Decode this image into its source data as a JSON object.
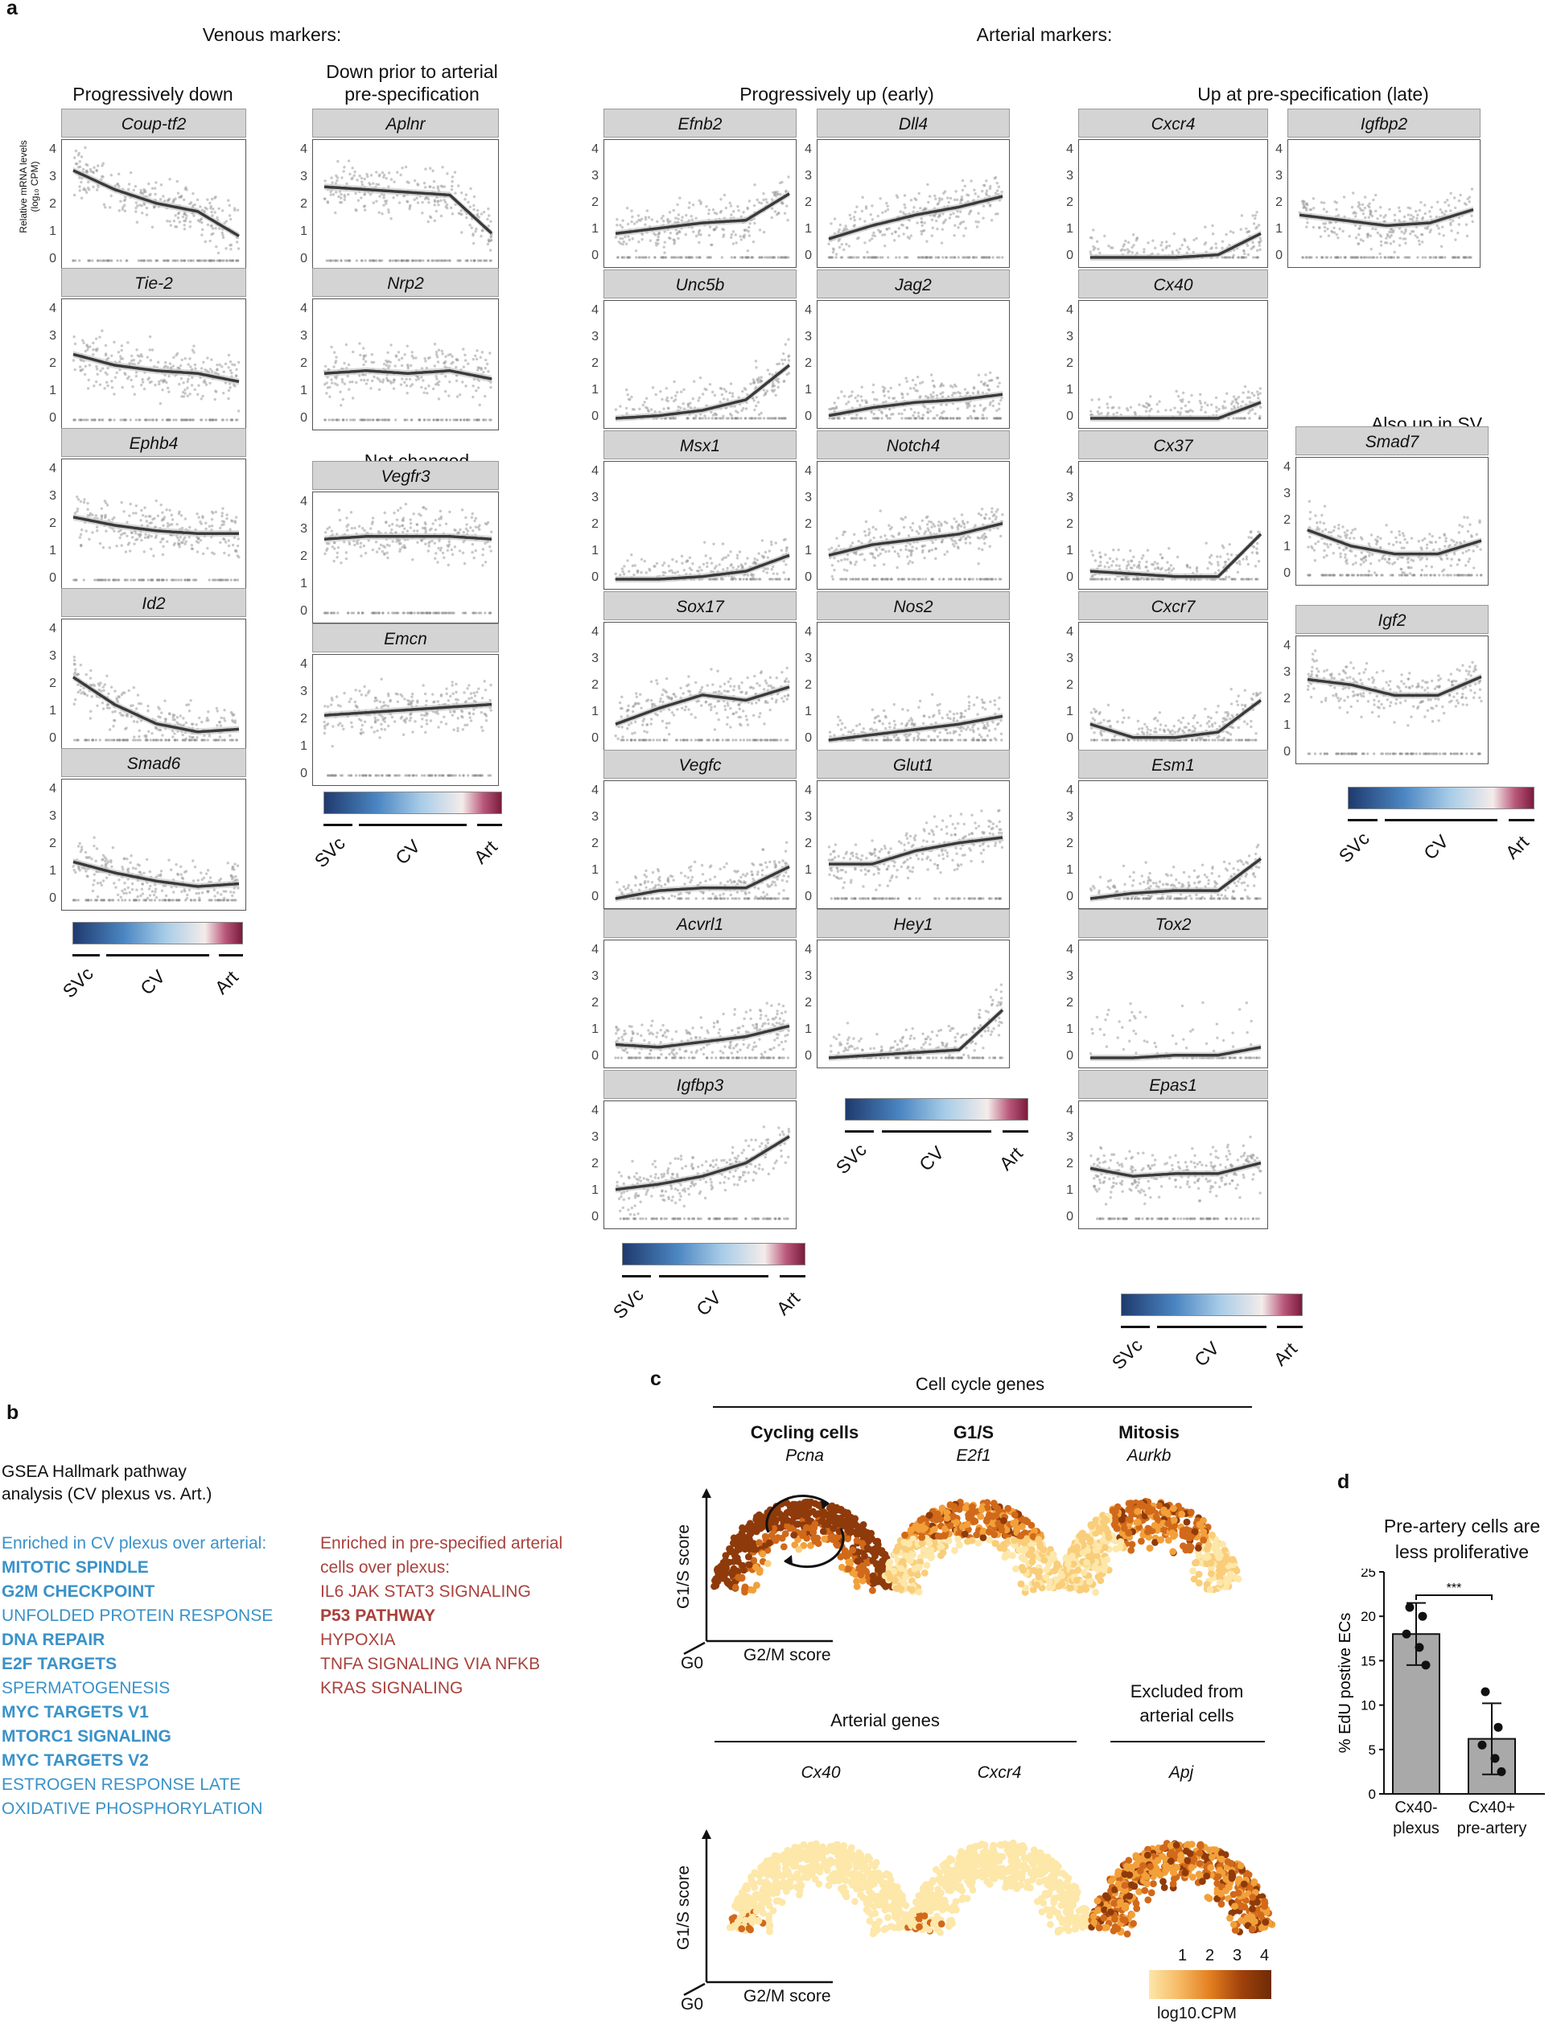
{
  "panel_letters": {
    "a": "a",
    "b": "b",
    "c": "c",
    "d": "d"
  },
  "panel_a": {
    "venous_title": "Venous markers:",
    "arterial_title": "Arterial markers:",
    "group_titles": {
      "prog_down": "Progressively down",
      "down_prior_l1": "Down prior to arterial",
      "down_prior_l2": "pre-specification",
      "not_changed": "Not changed",
      "prog_up": "Progressively up (early)",
      "up_late": "Up at pre-specification (late)",
      "also_sv": "Also up in SV"
    },
    "y_axis_label_l1": "Relative mRNA levels",
    "y_axis_label_l2": "(log₁₀ CPM)",
    "colorbar_labels": {
      "svc": "SVc",
      "cv": "CV",
      "art": "Art"
    },
    "colors": {
      "curve": "#3a3a3a",
      "dots": "#9a9a9a",
      "ribbon": "#c8c8c8",
      "strip": "#d4d4d4"
    },
    "genes": [
      {
        "name": "Coup-tf2",
        "yticks": [
          "4",
          "3",
          "2",
          "1",
          "0"
        ],
        "trend": [
          3.3,
          2.6,
          2.1,
          1.8,
          0.9
        ]
      },
      {
        "name": "Tie-2",
        "yticks": [
          "4",
          "3",
          "2",
          "1",
          "0"
        ],
        "trend": [
          2.4,
          2.0,
          1.8,
          1.7,
          1.4
        ]
      },
      {
        "name": "Ephb4",
        "yticks": [
          "4",
          "3",
          "2",
          "1",
          "0"
        ],
        "trend": [
          2.3,
          2.0,
          1.8,
          1.7,
          1.7
        ]
      },
      {
        "name": "Id2",
        "yticks": [
          "4",
          "3",
          "2",
          "1",
          "0"
        ],
        "trend": [
          2.3,
          1.3,
          0.6,
          0.3,
          0.4
        ]
      },
      {
        "name": "Smad6",
        "yticks": [
          "4",
          "3",
          "2",
          "1",
          "0"
        ],
        "trend": [
          1.4,
          1.0,
          0.7,
          0.5,
          0.6
        ]
      },
      {
        "name": "Aplnr",
        "yticks": [
          "4",
          "3",
          "2",
          "1",
          "0"
        ],
        "trend": [
          2.7,
          2.6,
          2.5,
          2.4,
          1.0
        ]
      },
      {
        "name": "Nrp2",
        "yticks": [
          "4",
          "3",
          "2",
          "1",
          "0"
        ],
        "trend": [
          1.7,
          1.8,
          1.7,
          1.8,
          1.5
        ]
      },
      {
        "name": "Vegfr3",
        "yticks": [
          "4",
          "3",
          "2",
          "1",
          "0"
        ],
        "trend": [
          2.7,
          2.8,
          2.8,
          2.8,
          2.7
        ]
      },
      {
        "name": "Emcn",
        "yticks": [
          "4",
          "3",
          "2",
          "1",
          "0"
        ],
        "trend": [
          2.2,
          2.3,
          2.4,
          2.5,
          2.6
        ]
      },
      {
        "name": "Efnb2",
        "yticks": [
          "4",
          "3",
          "2",
          "1",
          "0"
        ],
        "trend": [
          0.9,
          1.1,
          1.3,
          1.4,
          2.4
        ]
      },
      {
        "name": "Unc5b",
        "yticks": [
          "4",
          "3",
          "2",
          "1",
          "0"
        ],
        "trend": [
          0.0,
          0.1,
          0.3,
          0.7,
          2.0
        ]
      },
      {
        "name": "Msx1",
        "yticks": [
          "4",
          "3",
          "2",
          "1",
          "0"
        ],
        "trend": [
          0.0,
          0.0,
          0.1,
          0.3,
          0.9
        ]
      },
      {
        "name": "Sox17",
        "yticks": [
          "4",
          "3",
          "2",
          "1",
          "0"
        ],
        "trend": [
          0.6,
          1.2,
          1.7,
          1.5,
          2.0
        ]
      },
      {
        "name": "Vegfc",
        "yticks": [
          "4",
          "3",
          "2",
          "1",
          "0"
        ],
        "trend": [
          0.0,
          0.3,
          0.4,
          0.4,
          1.2
        ]
      },
      {
        "name": "Acvrl1",
        "yticks": [
          "4",
          "3",
          "2",
          "1",
          "0"
        ],
        "trend": [
          0.5,
          0.4,
          0.6,
          0.8,
          1.2
        ]
      },
      {
        "name": "Igfbp3",
        "yticks": [
          "4",
          "3",
          "2",
          "1",
          "0"
        ],
        "trend": [
          1.1,
          1.3,
          1.6,
          2.1,
          3.1
        ]
      },
      {
        "name": "Dll4",
        "yticks": [
          "4",
          "3",
          "2",
          "1",
          "0"
        ],
        "trend": [
          0.7,
          1.2,
          1.6,
          1.9,
          2.3
        ]
      },
      {
        "name": "Jag2",
        "yticks": [
          "4",
          "3",
          "2",
          "1",
          "0"
        ],
        "trend": [
          0.1,
          0.4,
          0.6,
          0.7,
          0.9
        ]
      },
      {
        "name": "Notch4",
        "yticks": [
          "4",
          "3",
          "2",
          "1",
          "0"
        ],
        "trend": [
          0.9,
          1.3,
          1.5,
          1.7,
          2.1
        ]
      },
      {
        "name": "Nos2",
        "yticks": [
          "4",
          "3",
          "2",
          "1",
          "0"
        ],
        "trend": [
          0.0,
          0.2,
          0.4,
          0.6,
          0.9
        ]
      },
      {
        "name": "Glut1",
        "yticks": [
          "4",
          "3",
          "2",
          "1",
          "0"
        ],
        "trend": [
          1.3,
          1.3,
          1.8,
          2.1,
          2.3
        ]
      },
      {
        "name": "Hey1",
        "yticks": [
          "4",
          "3",
          "2",
          "1",
          "0"
        ],
        "trend": [
          0.0,
          0.1,
          0.2,
          0.3,
          1.8
        ]
      },
      {
        "name": "Cxcr4",
        "yticks": [
          "4",
          "3",
          "2",
          "1",
          "0"
        ],
        "trend": [
          0.0,
          0.0,
          0.0,
          0.1,
          0.9
        ]
      },
      {
        "name": "Cx40",
        "yticks": [
          "4",
          "3",
          "2",
          "1",
          "0"
        ],
        "trend": [
          0.0,
          0.0,
          0.0,
          0.0,
          0.6
        ]
      },
      {
        "name": "Cx37",
        "yticks": [
          "4",
          "3",
          "2",
          "1",
          "0"
        ],
        "trend": [
          0.3,
          0.2,
          0.1,
          0.1,
          1.7
        ]
      },
      {
        "name": "Cxcr7",
        "yticks": [
          "4",
          "3",
          "2",
          "1",
          "0"
        ],
        "trend": [
          0.6,
          0.1,
          0.1,
          0.3,
          1.5
        ]
      },
      {
        "name": "Esm1",
        "yticks": [
          "4",
          "3",
          "2",
          "1",
          "0"
        ],
        "trend": [
          0.0,
          0.2,
          0.3,
          0.3,
          1.5
        ]
      },
      {
        "name": "Tox2",
        "yticks": [
          "4",
          "3",
          "2",
          "1",
          "0"
        ],
        "trend": [
          0.0,
          0.0,
          0.1,
          0.1,
          0.4
        ]
      },
      {
        "name": "Epas1",
        "yticks": [
          "4",
          "3",
          "2",
          "1",
          "0"
        ],
        "trend": [
          1.9,
          1.6,
          1.7,
          1.7,
          2.1
        ]
      },
      {
        "name": "Igfbp2",
        "yticks": [
          "4",
          "3",
          "2",
          "1",
          "0"
        ],
        "trend": [
          1.6,
          1.4,
          1.2,
          1.3,
          1.8
        ]
      },
      {
        "name": "Smad7",
        "yticks": [
          "4",
          "3",
          "2",
          "1",
          "0"
        ],
        "trend": [
          1.7,
          1.1,
          0.8,
          0.8,
          1.3
        ]
      },
      {
        "name": "Igf2",
        "yticks": [
          "4",
          "3",
          "2",
          "1",
          "0"
        ],
        "trend": [
          2.8,
          2.6,
          2.2,
          2.2,
          2.9
        ]
      }
    ]
  },
  "panel_b": {
    "title_l1": "GSEA Hallmark pathway",
    "title_l2": "analysis (CV plexus vs.  Art.)",
    "cv_color": "#3a92c8",
    "art_color": "#a8423d",
    "cv_header": "Enriched in CV plexus over arterial:",
    "cv_items": [
      {
        "label": "MITOTIC SPINDLE",
        "bold": true
      },
      {
        "label": "G2M CHECKPOINT",
        "bold": true
      },
      {
        "label": "UNFOLDED PROTEIN RESPONSE",
        "bold": false
      },
      {
        "label": "DNA REPAIR",
        "bold": true
      },
      {
        "label": "E2F TARGETS",
        "bold": true
      },
      {
        "label": "SPERMATOGENESIS",
        "bold": false
      },
      {
        "label": "MYC TARGETS V1",
        "bold": true
      },
      {
        "label": "MTORC1 SIGNALING",
        "bold": true
      },
      {
        "label": "MYC TARGETS V2",
        "bold": true
      },
      {
        "label": "ESTROGEN RESPONSE LATE",
        "bold": false
      },
      {
        "label": "OXIDATIVE PHOSPHORYLATION",
        "bold": false
      }
    ],
    "art_header_l1": "Enriched in pre-specified arterial",
    "art_header_l2": "cells over plexus:",
    "art_items": [
      {
        "label": "IL6 JAK STAT3 SIGNALING",
        "bold": false
      },
      {
        "label": "P53 PATHWAY",
        "bold": true
      },
      {
        "label": "HYPOXIA",
        "bold": false
      },
      {
        "label": "TNFA SIGNALING VIA NFKB",
        "bold": false
      },
      {
        "label": "KRAS SIGNALING",
        "bold": false
      }
    ]
  },
  "panel_c": {
    "cell_cycle_title": "Cell cycle genes",
    "arterial_genes_title": "Arterial genes",
    "excluded_l1": "Excluded from",
    "excluded_l2": "arterial cells",
    "maps_top": [
      {
        "title": "Cycling cells",
        "gene": "Pcna"
      },
      {
        "title": "G1/S",
        "gene": "E2f1"
      },
      {
        "title": "Mitosis",
        "gene": "Aurkb"
      }
    ],
    "maps_bottom": [
      {
        "gene": "Cx40"
      },
      {
        "gene": "Cxcr4"
      },
      {
        "gene": "Apj"
      }
    ],
    "axis_y": "G1/S score",
    "axis_x": "G2/M score",
    "axis_origin": "G0",
    "legend_ticks": [
      "1",
      "2",
      "3",
      "4"
    ],
    "legend_title": "log10.CPM",
    "colors": {
      "low": "#fde7a9",
      "mid": "#f4a23c",
      "high": "#a1420c"
    }
  },
  "panel_d": {
    "title_l1": "Pre-artery cells are",
    "title_l2": "less proliferative",
    "ylabel": "% EdU postive ECs",
    "significance": "***",
    "chart_data": {
      "type": "bar",
      "categories": [
        "Cx40- plexus",
        "Cx40+ pre-artery"
      ],
      "category_labels_l1": [
        "Cx40-",
        "Cx40+"
      ],
      "category_labels_l2": [
        "plexus",
        "pre-artery"
      ],
      "values": [
        18,
        6.2
      ],
      "errors": [
        3.5,
        4.0
      ],
      "points": [
        [
          21,
          20,
          18,
          16.5,
          14.5
        ],
        [
          11.5,
          7.5,
          5.5,
          4,
          2.5
        ]
      ],
      "yticks": [
        "25",
        "20",
        "15",
        "10",
        "5",
        "0"
      ],
      "ylim": [
        0,
        25
      ],
      "ylabel": "% EdU postive ECs",
      "bar_color": "#a9a9a9"
    }
  }
}
